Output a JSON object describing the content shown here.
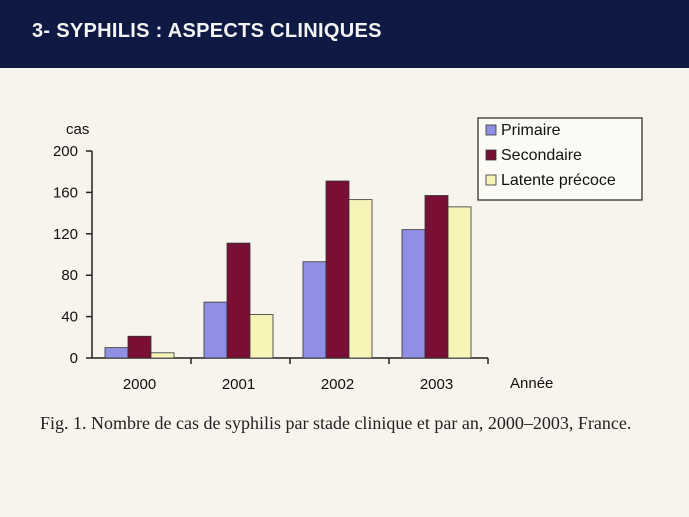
{
  "slide": {
    "title": "3- SYPHILIS : ASPECTS CLINIQUES",
    "caption": "Fig. 1. Nombre de cas de syphilis par stade clinique et par an, 2000–2003, France."
  },
  "colors": {
    "header_bg": "#0e1a44",
    "slide_bg": "#f6f4ec",
    "primaire": "#8f8fe6",
    "secondaire": "#7a0f36",
    "latente": "#f7f4b8"
  },
  "chart_data": {
    "type": "bar",
    "title": "",
    "ylabel": "cas",
    "xlabel": "Année",
    "categories": [
      "2000",
      "2001",
      "2002",
      "2003"
    ],
    "yticks": [
      "0",
      "40",
      "80",
      "120",
      "160",
      "200"
    ],
    "ylim": [
      0,
      200
    ],
    "grid": false,
    "legend_position": "top-right",
    "series": [
      {
        "name": "Primaire",
        "values": [
          10,
          54,
          93,
          124
        ],
        "color": "#8f8fe6"
      },
      {
        "name": "Secondaire",
        "values": [
          21,
          111,
          171,
          157
        ],
        "color": "#7a0f36"
      },
      {
        "name": "Latente précoce",
        "values": [
          5,
          42,
          153,
          146
        ],
        "color": "#f7f4b8"
      }
    ]
  }
}
